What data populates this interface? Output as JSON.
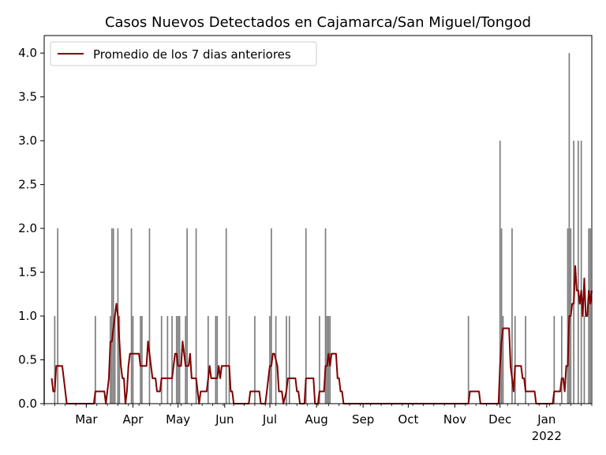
{
  "chart_data": {
    "type": "bar",
    "title": "Casos Nuevos Detectados en Cajamarca/San Miguel/Tongod",
    "xlabel": "",
    "ylabel": "",
    "ylim": [
      0,
      4.2
    ],
    "xlim": [
      "2021-02-01",
      "2022-01-31"
    ],
    "grid": false,
    "legend": {
      "placement": "top-left",
      "entries": [
        "Promedio de los 7 dias anteriores"
      ]
    },
    "y_ticks": [
      "0.0",
      "0.5",
      "1.0",
      "1.5",
      "2.0",
      "2.5",
      "3.0",
      "3.5",
      "4.0"
    ],
    "x_ticks": [
      {
        "label": "Mar",
        "date": "2021-03-01"
      },
      {
        "label": "Apr",
        "date": "2021-04-01"
      },
      {
        "label": "May",
        "date": "2021-05-01"
      },
      {
        "label": "Jun",
        "date": "2021-06-01"
      },
      {
        "label": "Jul",
        "date": "2021-07-01"
      },
      {
        "label": "Aug",
        "date": "2021-08-01"
      },
      {
        "label": "Sep",
        "date": "2021-09-01"
      },
      {
        "label": "Oct",
        "date": "2021-10-01"
      },
      {
        "label": "Nov",
        "date": "2021-11-01"
      },
      {
        "label": "Dec",
        "date": "2021-12-01"
      },
      {
        "label": "Jan",
        "sublabel": "2022",
        "date": "2022-01-01"
      }
    ],
    "bars": {
      "color": "#7f7f7f",
      "dates": [
        "2021-02-01",
        "2021-02-08",
        "2021-02-10",
        "2021-03-07",
        "2021-03-17",
        "2021-03-18",
        "2021-03-19",
        "2021-03-20",
        "2021-03-22",
        "2021-03-23",
        "2021-03-31",
        "2021-04-01",
        "2021-04-06",
        "2021-04-07",
        "2021-04-12",
        "2021-04-20",
        "2021-04-24",
        "2021-04-27",
        "2021-04-30",
        "2021-05-01",
        "2021-05-02",
        "2021-05-06",
        "2021-05-07",
        "2021-05-13",
        "2021-05-21",
        "2021-05-26",
        "2021-05-27",
        "2021-06-02",
        "2021-06-04",
        "2021-06-21",
        "2021-07-01",
        "2021-07-02",
        "2021-07-05",
        "2021-07-12",
        "2021-07-14",
        "2021-07-25",
        "2021-08-03",
        "2021-08-07",
        "2021-08-08",
        "2021-08-09",
        "2021-08-10",
        "2021-11-10",
        "2021-12-01",
        "2021-12-02",
        "2021-12-03",
        "2021-12-09",
        "2021-12-11",
        "2021-12-18",
        "2022-01-06",
        "2022-01-11",
        "2022-01-15",
        "2022-01-16",
        "2022-01-17",
        "2022-01-19",
        "2022-01-22",
        "2022-01-24",
        "2022-01-26",
        "2022-01-29",
        "2022-01-30"
      ],
      "values": [
        1,
        1,
        2,
        1,
        1,
        2,
        2,
        1,
        2,
        1,
        2,
        1,
        1,
        1,
        2,
        1,
        1,
        1,
        1,
        1,
        1,
        1,
        2,
        2,
        1,
        1,
        1,
        2,
        1,
        1,
        1,
        2,
        1,
        1,
        1,
        2,
        1,
        2,
        1,
        1,
        1,
        1,
        3,
        2,
        1,
        2,
        1,
        1,
        1,
        1,
        2,
        4,
        2,
        3,
        3,
        3,
        1,
        2,
        2
      ]
    },
    "series": [
      {
        "name": "Promedio de los 7 dias anteriores",
        "color": "#800000",
        "points": [
          [
            "2021-02-06",
            0.29
          ],
          [
            "2021-02-07",
            0.14
          ],
          [
            "2021-02-08",
            0.14
          ],
          [
            "2021-02-09",
            0.43
          ],
          [
            "2021-02-13",
            0.43
          ],
          [
            "2021-02-14",
            0.29
          ],
          [
            "2021-02-16",
            0.0
          ],
          [
            "2021-03-06",
            0.0
          ],
          [
            "2021-03-07",
            0.14
          ],
          [
            "2021-03-13",
            0.14
          ],
          [
            "2021-03-14",
            0.0
          ],
          [
            "2021-03-15",
            0.14
          ],
          [
            "2021-03-16",
            0.29
          ],
          [
            "2021-03-17",
            0.71
          ],
          [
            "2021-03-18",
            0.71
          ],
          [
            "2021-03-19",
            0.86
          ],
          [
            "2021-03-20",
            1.0
          ],
          [
            "2021-03-21",
            1.14
          ],
          [
            "2021-03-22",
            1.0
          ],
          [
            "2021-03-23",
            0.71
          ],
          [
            "2021-03-24",
            0.43
          ],
          [
            "2021-03-25",
            0.29
          ],
          [
            "2021-03-26",
            0.29
          ],
          [
            "2021-03-27",
            0.0
          ],
          [
            "2021-03-28",
            0.14
          ],
          [
            "2021-03-29",
            0.43
          ],
          [
            "2021-03-30",
            0.57
          ],
          [
            "2021-04-01",
            0.57
          ],
          [
            "2021-04-05",
            0.57
          ],
          [
            "2021-04-06",
            0.43
          ],
          [
            "2021-04-10",
            0.43
          ],
          [
            "2021-04-11",
            0.71
          ],
          [
            "2021-04-12",
            0.57
          ],
          [
            "2021-04-13",
            0.43
          ],
          [
            "2021-04-14",
            0.29
          ],
          [
            "2021-04-16",
            0.29
          ],
          [
            "2021-04-17",
            0.14
          ],
          [
            "2021-04-19",
            0.14
          ],
          [
            "2021-04-20",
            0.29
          ],
          [
            "2021-04-27",
            0.29
          ],
          [
            "2021-04-28",
            0.43
          ],
          [
            "2021-04-29",
            0.57
          ],
          [
            "2021-04-30",
            0.57
          ],
          [
            "2021-05-01",
            0.43
          ],
          [
            "2021-05-03",
            0.43
          ],
          [
            "2021-05-04",
            0.71
          ],
          [
            "2021-05-05",
            0.57
          ],
          [
            "2021-05-06",
            0.43
          ],
          [
            "2021-05-08",
            0.43
          ],
          [
            "2021-05-09",
            0.57
          ],
          [
            "2021-05-10",
            0.29
          ],
          [
            "2021-05-13",
            0.29
          ],
          [
            "2021-05-14",
            0.14
          ],
          [
            "2021-05-15",
            0.0
          ],
          [
            "2021-05-16",
            0.14
          ],
          [
            "2021-05-20",
            0.14
          ],
          [
            "2021-05-22",
            0.43
          ],
          [
            "2021-05-23",
            0.29
          ],
          [
            "2021-05-27",
            0.29
          ],
          [
            "2021-05-28",
            0.43
          ],
          [
            "2021-05-29",
            0.29
          ],
          [
            "2021-05-30",
            0.43
          ],
          [
            "2021-06-04",
            0.43
          ],
          [
            "2021-06-05",
            0.14
          ],
          [
            "2021-06-06",
            0.14
          ],
          [
            "2021-06-07",
            0.0
          ],
          [
            "2021-06-17",
            0.0
          ],
          [
            "2021-06-18",
            0.14
          ],
          [
            "2021-06-24",
            0.14
          ],
          [
            "2021-06-25",
            0.0
          ],
          [
            "2021-06-28",
            0.0
          ],
          [
            "2021-06-29",
            0.14
          ],
          [
            "2021-06-30",
            0.29
          ],
          [
            "2021-07-01",
            0.43
          ],
          [
            "2021-07-02",
            0.43
          ],
          [
            "2021-07-03",
            0.57
          ],
          [
            "2021-07-04",
            0.57
          ],
          [
            "2021-07-06",
            0.43
          ],
          [
            "2021-07-07",
            0.14
          ],
          [
            "2021-07-09",
            0.14
          ],
          [
            "2021-07-10",
            0.0
          ],
          [
            "2021-07-12",
            0.14
          ],
          [
            "2021-07-13",
            0.29
          ],
          [
            "2021-07-18",
            0.29
          ],
          [
            "2021-07-19",
            0.14
          ],
          [
            "2021-07-20",
            0.14
          ],
          [
            "2021-07-21",
            0.0
          ],
          [
            "2021-07-24",
            0.0
          ],
          [
            "2021-07-25",
            0.29
          ],
          [
            "2021-07-30",
            0.29
          ],
          [
            "2021-07-31",
            0.0
          ],
          [
            "2021-08-02",
            0.0
          ],
          [
            "2021-08-03",
            0.14
          ],
          [
            "2021-08-06",
            0.14
          ],
          [
            "2021-08-07",
            0.43
          ],
          [
            "2021-08-08",
            0.43
          ],
          [
            "2021-08-09",
            0.57
          ],
          [
            "2021-08-10",
            0.43
          ],
          [
            "2021-08-11",
            0.57
          ],
          [
            "2021-08-14",
            0.57
          ],
          [
            "2021-08-15",
            0.29
          ],
          [
            "2021-08-16",
            0.29
          ],
          [
            "2021-08-17",
            0.14
          ],
          [
            "2021-08-18",
            0.14
          ],
          [
            "2021-08-19",
            0.0
          ],
          [
            "2021-11-10",
            0.0
          ],
          [
            "2021-11-11",
            0.14
          ],
          [
            "2021-11-17",
            0.14
          ],
          [
            "2021-11-18",
            0.0
          ],
          [
            "2021-11-30",
            0.0
          ],
          [
            "2021-12-01",
            0.43
          ],
          [
            "2021-12-02",
            0.71
          ],
          [
            "2021-12-03",
            0.86
          ],
          [
            "2021-12-07",
            0.86
          ],
          [
            "2021-12-08",
            0.43
          ],
          [
            "2021-12-09",
            0.29
          ],
          [
            "2021-12-10",
            0.14
          ],
          [
            "2021-12-11",
            0.43
          ],
          [
            "2021-12-15",
            0.43
          ],
          [
            "2021-12-16",
            0.29
          ],
          [
            "2021-12-17",
            0.29
          ],
          [
            "2021-12-18",
            0.14
          ],
          [
            "2021-12-24",
            0.14
          ],
          [
            "2021-12-25",
            0.0
          ],
          [
            "2022-01-05",
            0.0
          ],
          [
            "2022-01-06",
            0.14
          ],
          [
            "2022-01-10",
            0.14
          ],
          [
            "2022-01-11",
            0.29
          ],
          [
            "2022-01-12",
            0.29
          ],
          [
            "2022-01-13",
            0.14
          ],
          [
            "2022-01-14",
            0.43
          ],
          [
            "2022-01-15",
            0.43
          ],
          [
            "2022-01-16",
            1.0
          ],
          [
            "2022-01-17",
            1.0
          ],
          [
            "2022-01-18",
            1.14
          ],
          [
            "2022-01-19",
            1.14
          ],
          [
            "2022-01-20",
            1.57
          ],
          [
            "2022-01-21",
            1.29
          ],
          [
            "2022-01-22",
            1.29
          ],
          [
            "2022-01-23",
            1.14
          ],
          [
            "2022-01-24",
            1.29
          ],
          [
            "2022-01-25",
            1.0
          ],
          [
            "2022-01-26",
            1.43
          ],
          [
            "2022-01-27",
            1.0
          ],
          [
            "2022-01-28",
            1.0
          ],
          [
            "2022-01-29",
            1.29
          ],
          [
            "2022-01-30",
            1.14
          ],
          [
            "2022-01-31",
            1.29
          ]
        ]
      }
    ]
  }
}
